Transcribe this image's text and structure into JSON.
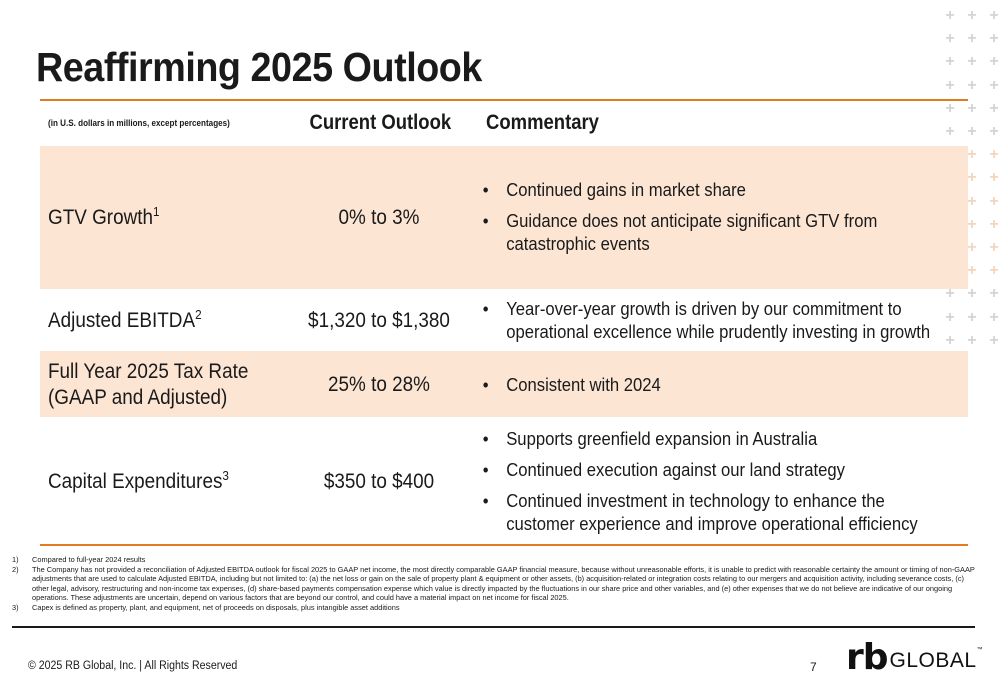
{
  "title": "Reaffirming 2025 Outlook",
  "table": {
    "header_note": "(in U.S. dollars in millions, except percentages)",
    "col_outlook": "Current Outlook",
    "col_commentary": "Commentary",
    "rows": [
      {
        "label": "GTV Growth",
        "sup": "1",
        "outlook": "0% to 3%",
        "bullets": [
          "Continued gains in market share",
          "Guidance does not anticipate significant GTV from catastrophic events"
        ]
      },
      {
        "label": "Adjusted EBITDA",
        "sup": "2",
        "outlook": "$1,320 to $1,380",
        "bullets": [
          "Year-over-year growth is driven by our commitment to operational excellence while prudently investing in growth"
        ]
      },
      {
        "label_line1": "Full Year 2025 Tax Rate",
        "label_line2": "(GAAP and Adjusted)",
        "outlook": "25% to 28%",
        "bullets": [
          "Consistent with 2024"
        ]
      },
      {
        "label": "Capital Expenditures",
        "sup": "3",
        "outlook": "$350 to $400",
        "bullets": [
          "Supports greenfield expansion in Australia",
          "Continued execution against our land strategy",
          "Continued investment in technology to enhance the customer experience and improve operational efficiency"
        ]
      }
    ]
  },
  "footnotes": [
    {
      "num": "1)",
      "text": "Compared to full-year 2024 results"
    },
    {
      "num": "2)",
      "text": "The Company has not provided a reconciliation of Adjusted EBITDA outlook for fiscal 2025 to GAAP net income, the most directly comparable GAAP financial measure, because without unreasonable efforts, it is unable to predict with reasonable certainty the amount or timing of non-GAAP adjustments that are used to calculate Adjusted EBITDA, including but not limited to: (a) the net loss or gain on the sale of property plant & equipment or other assets, (b) acquisition-related or integration costs relating to our mergers and acquisition activity, including severance costs, (c) other legal, advisory, restructuring and non-income tax expenses, (d) share-based payments compensation expense which value is directly impacted by the fluctuations in our share price and other variables, and (e) other expenses that we do not believe are indicative of our ongoing operations. These adjustments are uncertain, depend on various factors that are beyond our control, and could have a material impact on net income for fiscal 2025."
    },
    {
      "num": "3)",
      "text": "Capex is defined as property, plant, and equipment, net of proceeds on disposals, plus intangible asset additions"
    }
  ],
  "footer": {
    "copyright": "© 2025 RB Global, Inc. | All Rights Reserved",
    "page_number": "7",
    "logo_rb": "rb",
    "logo_global": "GLOBAL",
    "logo_tm": "™"
  },
  "colors": {
    "accent": "#e07b24",
    "row_shade": "#fce5d3"
  }
}
